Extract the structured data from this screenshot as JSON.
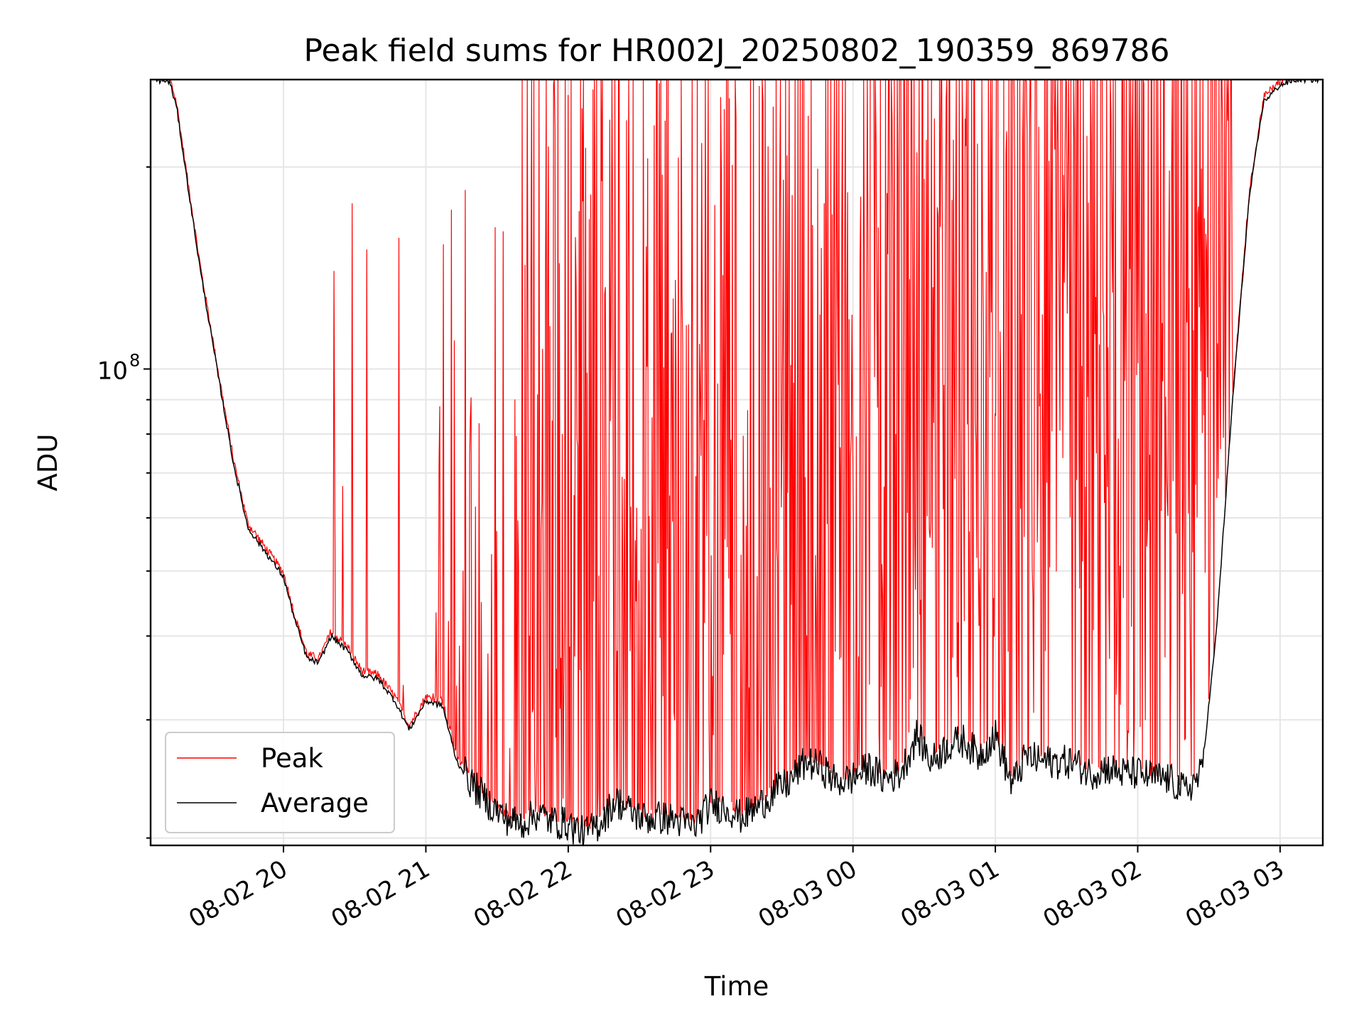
{
  "chart_data": {
    "type": "line",
    "title": "Peak field sums for HR002J_20250802_190359_869786",
    "xlabel": "Time",
    "ylabel": "ADU",
    "y_scale": "log",
    "ylim": [
      19500000,
      270000000
    ],
    "xlim": [
      "2025-08-02 19:04",
      "2025-08-03 03:18"
    ],
    "x_ticks": [
      {
        "label": "08-02 20",
        "time": "2025-08-02 20:00"
      },
      {
        "label": "08-02 21",
        "time": "2025-08-02 21:00"
      },
      {
        "label": "08-02 22",
        "time": "2025-08-02 22:00"
      },
      {
        "label": "08-02 23",
        "time": "2025-08-02 23:00"
      },
      {
        "label": "08-03 00",
        "time": "2025-08-03 00:00"
      },
      {
        "label": "08-03 01",
        "time": "2025-08-03 01:00"
      },
      {
        "label": "08-03 02",
        "time": "2025-08-03 02:00"
      },
      {
        "label": "08-03 03",
        "time": "2025-08-03 03:00"
      }
    ],
    "y_major_tick": {
      "base": "10",
      "exponent": "8",
      "value": 100000000
    },
    "grid": true,
    "legend_position": "lower-left",
    "series": [
      {
        "name": "Peak",
        "color": "#ff0000",
        "baseline_ref": "Average",
        "spike_max": 270000000
      },
      {
        "name": "Average",
        "color": "#000000",
        "x": [
          "2025-08-02 19:05",
          "2025-08-02 19:12",
          "2025-08-02 19:15",
          "2025-08-02 19:19",
          "2025-08-02 19:25",
          "2025-08-02 19:32",
          "2025-08-02 19:39",
          "2025-08-02 19:45",
          "2025-08-02 19:53",
          "2025-08-02 20:00",
          "2025-08-02 20:05",
          "2025-08-02 20:10",
          "2025-08-02 20:15",
          "2025-08-02 20:20",
          "2025-08-02 20:27",
          "2025-08-02 20:33",
          "2025-08-02 20:40",
          "2025-08-02 20:47",
          "2025-08-02 20:53",
          "2025-08-02 21:00",
          "2025-08-02 21:07",
          "2025-08-02 21:13",
          "2025-08-02 21:20",
          "2025-08-02 21:27",
          "2025-08-02 21:33",
          "2025-08-02 21:40",
          "2025-08-02 21:47",
          "2025-08-02 21:53",
          "2025-08-02 22:00",
          "2025-08-02 22:07",
          "2025-08-02 22:13",
          "2025-08-02 22:20",
          "2025-08-02 22:27",
          "2025-08-02 22:33",
          "2025-08-02 22:40",
          "2025-08-02 22:47",
          "2025-08-02 22:53",
          "2025-08-02 23:00",
          "2025-08-02 23:07",
          "2025-08-02 23:13",
          "2025-08-02 23:20",
          "2025-08-02 23:27",
          "2025-08-02 23:33",
          "2025-08-02 23:40",
          "2025-08-02 23:47",
          "2025-08-02 23:53",
          "2025-08-03 00:00",
          "2025-08-03 00:07",
          "2025-08-03 00:13",
          "2025-08-03 00:20",
          "2025-08-03 00:27",
          "2025-08-03 00:33",
          "2025-08-03 00:40",
          "2025-08-03 00:47",
          "2025-08-03 00:53",
          "2025-08-03 01:00",
          "2025-08-03 01:07",
          "2025-08-03 01:13",
          "2025-08-03 01:20",
          "2025-08-03 01:27",
          "2025-08-03 01:33",
          "2025-08-03 01:40",
          "2025-08-03 01:47",
          "2025-08-03 01:53",
          "2025-08-03 02:00",
          "2025-08-03 02:07",
          "2025-08-03 02:13",
          "2025-08-03 02:20",
          "2025-08-03 02:27",
          "2025-08-03 02:33",
          "2025-08-03 02:40",
          "2025-08-03 02:47",
          "2025-08-03 02:53",
          "2025-08-03 03:00",
          "2025-08-03 03:07",
          "2025-08-03 03:17"
        ],
        "values": [
          270000000,
          268000000,
          245000000,
          195000000,
          140000000,
          100000000,
          72000000,
          58000000,
          53000000,
          49000000,
          42000000,
          37000000,
          36500000,
          40000000,
          38000000,
          35000000,
          34500000,
          32000000,
          29000000,
          32000000,
          31500000,
          26000000,
          24000000,
          22500000,
          21500000,
          21000000,
          21800000,
          21200000,
          21000000,
          20300000,
          21000000,
          22800000,
          21800000,
          21400000,
          21500000,
          21200000,
          20800000,
          22500000,
          22200000,
          21500000,
          22300000,
          23500000,
          24200000,
          26000000,
          25500000,
          24200000,
          24600000,
          25500000,
          24500000,
          25000000,
          28500000,
          26000000,
          27500000,
          28000000,
          26500000,
          28500000,
          24000000,
          26500000,
          26000000,
          26000000,
          26000000,
          25000000,
          25500000,
          25000000,
          25000000,
          24600000,
          24500000,
          23500000,
          25000000,
          40000000,
          90000000,
          180000000,
          250000000,
          265000000,
          270000000,
          270000000
        ]
      }
    ]
  }
}
